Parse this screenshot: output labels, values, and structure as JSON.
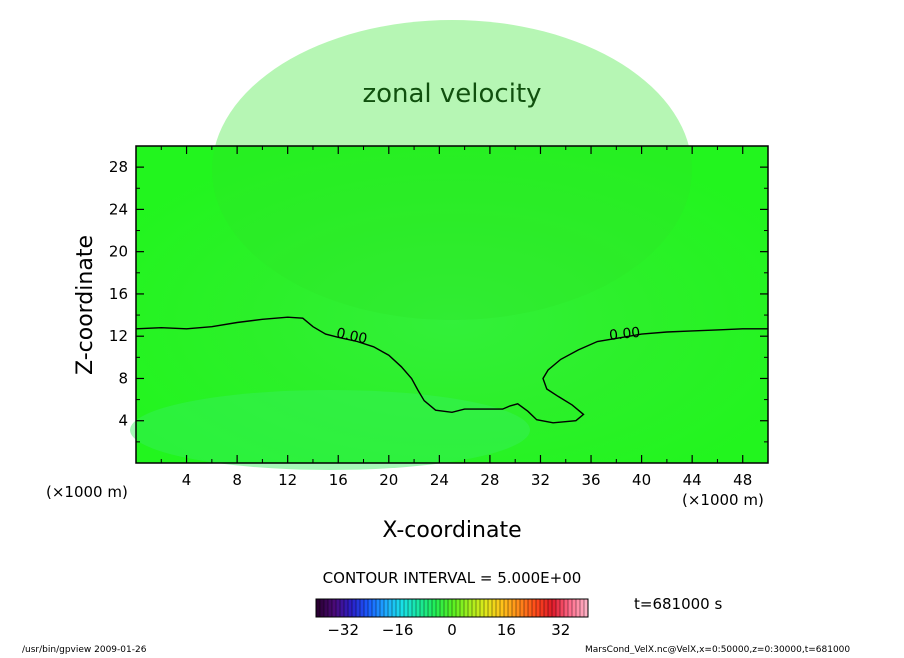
{
  "chart_data": {
    "type": "heatmap",
    "title": "zonal velocity",
    "xlabel": "X-coordinate",
    "ylabel": "Z-coordinate",
    "x_unit_left": "(×1000 m)",
    "x_unit_right": "(×1000 m)",
    "xlim": [
      0,
      50
    ],
    "ylim": [
      0,
      30
    ],
    "x_ticks": [
      4,
      8,
      12,
      16,
      20,
      24,
      28,
      32,
      36,
      40,
      44,
      48
    ],
    "y_ticks": [
      4,
      8,
      12,
      16,
      20,
      24,
      28
    ],
    "contour_interval_text": "CONTOUR INTERVAL = 5.000E+00",
    "contour_labels": [
      {
        "text": "0.00",
        "x": 17.0,
        "y": 11.6
      },
      {
        "text": "0.00",
        "x": 38.7,
        "y": 11.8
      }
    ],
    "zero_contour": [
      [
        0,
        12.7
      ],
      [
        2,
        12.8
      ],
      [
        4,
        12.7
      ],
      [
        6,
        12.9
      ],
      [
        8,
        13.3
      ],
      [
        10,
        13.6
      ],
      [
        12,
        13.8
      ],
      [
        13.2,
        13.7
      ],
      [
        14,
        12.9
      ],
      [
        15,
        12.2
      ],
      [
        16,
        11.9
      ],
      [
        17.5,
        11.5
      ],
      [
        18.8,
        11.0
      ],
      [
        20,
        10.2
      ],
      [
        21,
        9.1
      ],
      [
        21.8,
        8.0
      ],
      [
        22.3,
        6.9
      ],
      [
        22.8,
        5.9
      ],
      [
        23.7,
        5.0
      ],
      [
        25,
        4.8
      ],
      [
        26,
        5.1
      ],
      [
        28,
        5.1
      ],
      [
        29,
        5.1
      ],
      [
        29.6,
        5.4
      ],
      [
        30.2,
        5.6
      ],
      [
        31,
        4.9
      ],
      [
        31.7,
        4.1
      ],
      [
        33,
        3.8
      ],
      [
        34.8,
        4.0
      ],
      [
        35.4,
        4.6
      ],
      [
        34.5,
        5.5
      ],
      [
        33.4,
        6.3
      ],
      [
        32.5,
        7.0
      ],
      [
        32.2,
        8.0
      ],
      [
        32.6,
        8.8
      ],
      [
        33.6,
        9.8
      ],
      [
        35,
        10.7
      ],
      [
        36.5,
        11.5
      ],
      [
        38.5,
        11.9
      ],
      [
        40,
        12.2
      ],
      [
        42,
        12.4
      ],
      [
        44,
        12.5
      ],
      [
        46,
        12.6
      ],
      [
        48,
        12.7
      ],
      [
        50,
        12.7
      ]
    ],
    "colorbar": {
      "range": [
        -40,
        40
      ],
      "ticks": [
        -32,
        -16,
        0,
        16,
        32
      ],
      "colors": [
        "#2a0033",
        "#4b0a7a",
        "#2a1fc8",
        "#1a5cff",
        "#1ea8ff",
        "#19e0e8",
        "#19e8a0",
        "#22ee55",
        "#55f022",
        "#a0f01e",
        "#e0e81a",
        "#ffc21a",
        "#ff8a1a",
        "#ff4a1a",
        "#e01a2a",
        "#ff6a8a",
        "#ffb0c4"
      ]
    },
    "time_text": "t=681000 s",
    "footer_left": "/usr/bin/gpview  2009-01-26",
    "footer_right": "MarsCond_VelX.nc@VelX,x=0:50000,z=0:30000,t=681000"
  }
}
